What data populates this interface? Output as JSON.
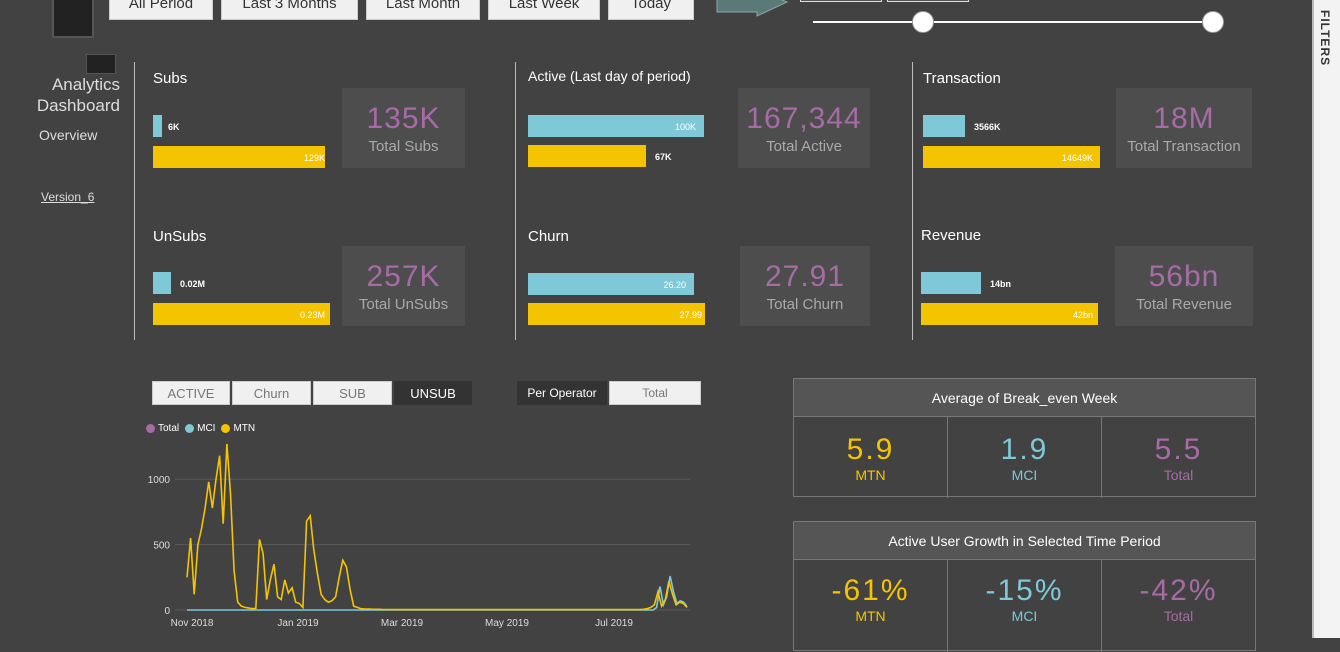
{
  "colors": {
    "mtn": "#f5c400",
    "mci": "#7ec8d8",
    "total": "#a76ba6"
  },
  "period_buttons": [
    "All Period",
    "Last 3 Months",
    "Last Month",
    "Last Week",
    "Today"
  ],
  "nav": {
    "title_line1": "Analytics",
    "title_line2": "Dashboard",
    "overview": "Overview",
    "version": "Version_6"
  },
  "kpis": {
    "subs": {
      "title": "Subs",
      "mci_label": "6K",
      "mtn_label": "129K",
      "mci_fraction": 0.05,
      "mtn_fraction": 1.0,
      "value": "135K",
      "caption": "Total Subs"
    },
    "active": {
      "title": "Active (Last day of period)",
      "mci_label": "100K",
      "mtn_label": "67K",
      "mci_fraction": 1.0,
      "mtn_fraction": 0.67,
      "value": "167,344",
      "caption": "Total Active"
    },
    "transaction": {
      "title": "Transaction",
      "mci_label": "3566K",
      "mtn_label": "14649K",
      "mci_fraction": 0.24,
      "mtn_fraction": 1.0,
      "value": "18M",
      "caption": "Total Transaction"
    },
    "unsubs": {
      "title": "UnSubs",
      "mci_label": "0.02M",
      "mtn_label": "0.23M",
      "mci_fraction": 0.1,
      "mtn_fraction": 1.0,
      "value": "257K",
      "caption": "Total UnSubs"
    },
    "churn": {
      "title": "Churn",
      "mci_label": "26.20",
      "mtn_label": "27.99",
      "mci_fraction": 0.94,
      "mtn_fraction": 1.0,
      "value": "27.91",
      "caption": "Total Churn"
    },
    "revenue": {
      "title": "Revenue",
      "mci_label": "14bn",
      "mtn_label": "42bn",
      "mci_fraction": 0.34,
      "mtn_fraction": 1.0,
      "value": "56bn",
      "caption": "Total Revenue"
    }
  },
  "metric_toggles": [
    "ACTIVE",
    "Churn",
    "SUB",
    "UNSUB"
  ],
  "selected_metric": "UNSUB",
  "mode_toggles": [
    "Per Operator",
    "Total"
  ],
  "selected_mode": "Per Operator",
  "legend": [
    "Total",
    "MCI",
    "MTN"
  ],
  "chart_data": {
    "type": "line",
    "x_ticks": [
      "Nov 2018",
      "Jan 2019",
      "Mar 2019",
      "May 2019",
      "Jul 2019"
    ],
    "y_ticks": [
      0,
      500,
      1000
    ],
    "ylim": [
      0,
      1300
    ],
    "series": [
      {
        "name": "MTN",
        "values": [
          250,
          550,
          120,
          500,
          620,
          780,
          980,
          780,
          1000,
          1180,
          660,
          1270,
          890,
          300,
          60,
          30,
          20,
          15,
          10,
          12,
          540,
          430,
          80,
          230,
          350,
          100,
          80,
          230,
          130,
          170,
          60,
          50,
          20,
          680,
          720,
          460,
          280,
          120,
          80,
          60,
          70,
          100,
          250,
          380,
          330,
          160,
          30,
          20,
          10,
          8,
          8,
          6,
          5,
          5,
          4,
          4,
          4,
          3,
          3,
          3,
          3,
          3,
          3,
          3,
          3,
          3,
          3,
          3,
          3,
          3,
          3,
          3,
          3,
          3,
          3,
          3,
          3,
          3,
          3,
          3,
          3,
          3,
          3,
          3,
          3,
          3,
          3,
          3,
          3,
          3,
          3,
          3,
          3,
          3,
          3,
          3,
          3,
          3,
          3,
          3,
          3,
          3,
          3,
          3,
          3,
          3,
          3,
          3,
          3,
          3,
          3,
          3,
          3,
          3,
          3,
          3,
          3,
          3,
          3,
          3,
          3,
          3,
          3,
          3,
          3,
          3,
          5,
          10,
          20,
          40,
          140,
          30,
          80,
          220,
          120,
          40,
          60,
          50,
          20
        ]
      },
      {
        "name": "MCI",
        "values": [
          0,
          0,
          0,
          0,
          0,
          0,
          0,
          0,
          0,
          0,
          0,
          0,
          0,
          0,
          0,
          0,
          0,
          0,
          0,
          0,
          0,
          0,
          0,
          0,
          0,
          0,
          0,
          0,
          0,
          0,
          0,
          0,
          0,
          0,
          0,
          0,
          0,
          0,
          0,
          0,
          0,
          0,
          0,
          0,
          0,
          0,
          0,
          0,
          0,
          0,
          0,
          0,
          0,
          0,
          0,
          0,
          0,
          0,
          0,
          0,
          0,
          0,
          0,
          0,
          0,
          0,
          0,
          0,
          0,
          0,
          0,
          0,
          0,
          0,
          0,
          0,
          0,
          0,
          0,
          0,
          0,
          0,
          0,
          0,
          0,
          0,
          0,
          0,
          0,
          0,
          0,
          0,
          0,
          0,
          0,
          0,
          0,
          0,
          0,
          0,
          0,
          0,
          0,
          0,
          0,
          0,
          0,
          0,
          0,
          0,
          0,
          0,
          0,
          0,
          0,
          0,
          0,
          0,
          0,
          0,
          0,
          0,
          0,
          0,
          0,
          0,
          0,
          0,
          0,
          0,
          0,
          0,
          0,
          0,
          0,
          0,
          0,
          0,
          0,
          20,
          180,
          40,
          100,
          260,
          140,
          50,
          70,
          60,
          25
        ]
      }
    ]
  },
  "break_even": {
    "title": "Average of Break_even Week",
    "mtn_value": "5.9",
    "mci_value": "1.9",
    "total_value": "5.5",
    "mtn_label": "MTN",
    "mci_label": "MCI",
    "total_label": "Total"
  },
  "growth": {
    "title": "Active User Growth in Selected Time Period",
    "mtn_value": "-61%",
    "mci_value": "-15%",
    "total_value": "-42%",
    "mtn_label": "MTN",
    "mci_label": "MCI",
    "total_label": "Total"
  },
  "filters_label": "FILTERS"
}
